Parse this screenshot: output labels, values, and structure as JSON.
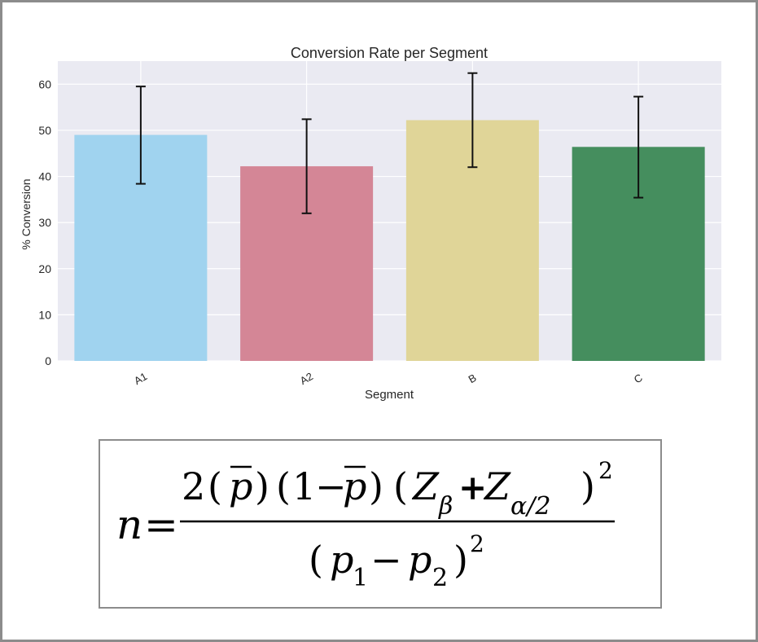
{
  "chart_data": {
    "type": "bar",
    "title": "Conversion Rate per Segment",
    "xlabel": "Segment",
    "ylabel": "% Conversion",
    "categories": [
      "A1",
      "A2",
      "B",
      "C"
    ],
    "values": [
      49,
      42.2,
      52.2,
      46.4
    ],
    "error_low": [
      38.4,
      32,
      42,
      35.4
    ],
    "error_high": [
      59.5,
      52.4,
      62.4,
      57.3
    ],
    "bar_colors": [
      "#a0d3ef",
      "#d48696",
      "#e0d598",
      "#458e5e"
    ],
    "ylim": [
      0,
      65
    ],
    "yticks": [
      0,
      10,
      20,
      30,
      40,
      50,
      60
    ],
    "grid": true,
    "background": "#eaeaf2"
  },
  "formula": {
    "lhs": "n",
    "equals": "=",
    "numerator": {
      "two": "2",
      "pbar": "p",
      "one": "1",
      "minus": "−",
      "z": "Z",
      "beta": "β",
      "plus": "+",
      "alpha_half": "α/2",
      "square": "2"
    },
    "denominator": {
      "p1_letter": "p",
      "p1_sub": "1",
      "minus": "−",
      "p2_letter": "p",
      "p2_sub": "2",
      "square": "2"
    }
  }
}
